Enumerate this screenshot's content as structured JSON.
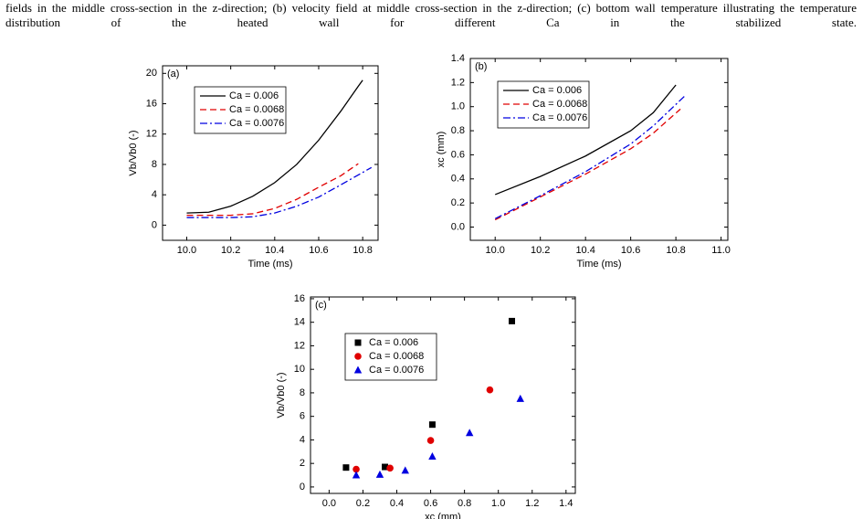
{
  "caption": "fields in the middle cross-section in the z-direction; (b) velocity field at middle cross-section in the z-direction; (c) bottom wall temperature illustrating the temperature distribution of the heated wall for different Ca in the stabilized state.",
  "chart_data": [
    {
      "type": "line",
      "panel": "(a)",
      "xlabel": "Time (ms)",
      "ylabel": "Vb/Vb0 (-)",
      "xlim": [
        9.89,
        10.87
      ],
      "ylim": [
        -2,
        21
      ],
      "xticks": [
        {
          "value": 10.0,
          "label": "10.0"
        },
        {
          "value": 10.2,
          "label": "10.2"
        },
        {
          "value": 10.4,
          "label": "10.4"
        },
        {
          "value": 10.6,
          "label": "10.6"
        },
        {
          "value": 10.8,
          "label": "10.8"
        }
      ],
      "yticks": [
        0,
        4,
        8,
        12,
        16,
        20
      ],
      "legend": "upper left",
      "series": [
        {
          "name": "Ca = 0.006",
          "color": "#000000",
          "dash": "solid",
          "x": [
            10.0,
            10.1,
            10.2,
            10.3,
            10.4,
            10.5,
            10.6,
            10.7,
            10.78,
            10.8
          ],
          "values": [
            1.6,
            1.7,
            2.5,
            3.8,
            5.6,
            8.0,
            11.2,
            15.0,
            18.3,
            19.1
          ]
        },
        {
          "name": "Ca = 0.0068",
          "color": "#e00000",
          "dash": "dashed",
          "x": [
            10.0,
            10.1,
            10.2,
            10.3,
            10.4,
            10.5,
            10.6,
            10.7,
            10.78
          ],
          "values": [
            1.3,
            1.3,
            1.3,
            1.5,
            2.2,
            3.4,
            5.0,
            6.5,
            8.1
          ]
        },
        {
          "name": "Ca = 0.0076",
          "color": "#0000e0",
          "dash": "dashdot",
          "x": [
            10.0,
            10.1,
            10.2,
            10.3,
            10.4,
            10.5,
            10.6,
            10.7,
            10.84
          ],
          "values": [
            1.0,
            1.0,
            1.0,
            1.1,
            1.6,
            2.5,
            3.7,
            5.3,
            7.6
          ]
        }
      ]
    },
    {
      "type": "line",
      "panel": "(b)",
      "xlabel": "Time (ms)",
      "ylabel": "xc (mm)",
      "xlim": [
        9.89,
        11.03
      ],
      "ylim": [
        -0.11,
        1.4
      ],
      "xticks": [
        {
          "value": 10.0,
          "label": "10.0"
        },
        {
          "value": 10.2,
          "label": "10.2"
        },
        {
          "value": 10.4,
          "label": "10.4"
        },
        {
          "value": 10.6,
          "label": "10.6"
        },
        {
          "value": 10.8,
          "label": "10.8"
        },
        {
          "value": 11.0,
          "label": "11.0"
        }
      ],
      "yticks": [
        {
          "value": 0,
          "label": "0.0"
        },
        0.2,
        0.4,
        0.6,
        0.8,
        {
          "value": 1,
          "label": "1.0"
        },
        1.2,
        1.4
      ],
      "legend": "upper left",
      "series": [
        {
          "name": "Ca = 0.006",
          "color": "#000000",
          "dash": "solid",
          "x": [
            10.0,
            10.2,
            10.4,
            10.6,
            10.7,
            10.8
          ],
          "values": [
            0.27,
            0.42,
            0.59,
            0.8,
            0.95,
            1.18
          ]
        },
        {
          "name": "Ca = 0.0068",
          "color": "#e00000",
          "dash": "dashed",
          "x": [
            10.0,
            10.2,
            10.4,
            10.6,
            10.7,
            10.82
          ],
          "values": [
            0.06,
            0.25,
            0.44,
            0.65,
            0.78,
            0.98
          ]
        },
        {
          "name": "Ca = 0.0076",
          "color": "#0000e0",
          "dash": "dashdot",
          "x": [
            10.0,
            10.2,
            10.4,
            10.6,
            10.7,
            10.84
          ],
          "values": [
            0.07,
            0.26,
            0.46,
            0.69,
            0.84,
            1.09
          ]
        }
      ]
    },
    {
      "type": "scatter",
      "panel": "(c)",
      "xlabel": "xc (mm)",
      "ylabel": "Vb/Vb0 (-)",
      "xlim": [
        -0.11,
        1.455
      ],
      "ylim": [
        -0.55,
        16.15
      ],
      "xticks": [
        {
          "value": 0,
          "label": "0.0"
        },
        0.2,
        0.4,
        0.6,
        0.8,
        {
          "value": 1,
          "label": "1.0"
        },
        1.2,
        1.4
      ],
      "yticks": [
        0,
        2,
        4,
        6,
        8,
        10,
        12,
        14,
        16
      ],
      "legend": "upper left",
      "series": [
        {
          "name": "Ca = 0.006",
          "color": "#000000",
          "marker": "square",
          "x": [
            0.1,
            0.33,
            0.61,
            1.08
          ],
          "values": [
            1.65,
            1.7,
            5.3,
            14.1
          ]
        },
        {
          "name": "Ca = 0.0068",
          "color": "#e00000",
          "marker": "circle",
          "x": [
            0.16,
            0.36,
            0.6,
            0.95
          ],
          "values": [
            1.5,
            1.6,
            3.95,
            8.25
          ]
        },
        {
          "name": "Ca = 0.0076",
          "color": "#0000e0",
          "marker": "triangle",
          "x": [
            0.16,
            0.3,
            0.45,
            0.61,
            0.83,
            1.13
          ],
          "values": [
            1.0,
            1.05,
            1.4,
            2.6,
            4.6,
            7.5
          ]
        }
      ]
    }
  ]
}
